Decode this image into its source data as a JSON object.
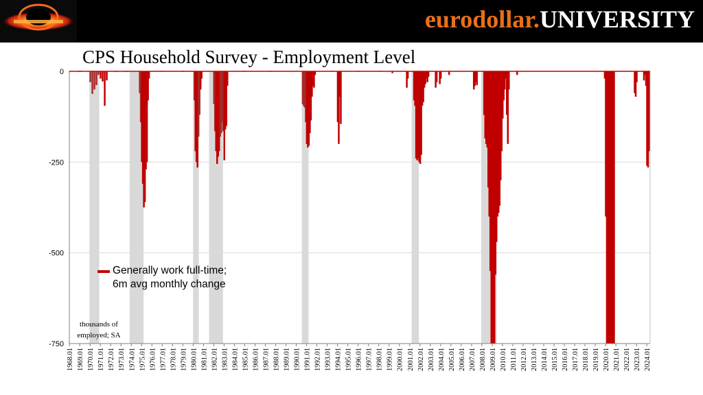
{
  "banner": {
    "brand_part1": "eurodollar.",
    "brand_part2": "UNIVERSITY",
    "logo_icon": "eurodollar-university-logo-icon"
  },
  "colors": {
    "banner_bg": "#000000",
    "brand_orange": "#e8701a",
    "bar_red": "#c00000",
    "bar_dark_red": "#a52a2a",
    "recession_gray": "#d9d9d9"
  },
  "chart_data": {
    "type": "bar",
    "title": "CPS Household Survey - Employment Level",
    "ylabel_note": [
      "thousands of",
      "employed; SA"
    ],
    "ylim": [
      -750,
      0
    ],
    "yticks": [
      0,
      -250,
      -500,
      -750
    ],
    "ytick_labels": [
      "0",
      "-250",
      "-500",
      "-750"
    ],
    "xlim": [
      "1968.01",
      "2024.04"
    ],
    "xtick_labels": [
      "1968.01",
      "1969.01",
      "1970.01",
      "1971.01",
      "1972.01",
      "1973.01",
      "1974.01",
      "1975.01",
      "1976.01",
      "1977.01",
      "1978.01",
      "1979.01",
      "1980.01",
      "1981.01",
      "1982.01",
      "1983.01",
      "1984.01",
      "1985.01",
      "1986.01",
      "1987.01",
      "1988.01",
      "1989.01",
      "1990.01",
      "1991.01",
      "1992.01",
      "1993.01",
      "1994.01",
      "1995.01",
      "1996.01",
      "1997.01",
      "1998.01",
      "1999.01",
      "2000.01",
      "2001.01",
      "2002.01",
      "2003.01",
      "2004.01",
      "2005.01",
      "2006.01",
      "2007.01",
      "2008.01",
      "2009.01",
      "2010.01",
      "2011.01",
      "2012.01",
      "2013.01",
      "2014.01",
      "2015.01",
      "2016.01",
      "2017.01",
      "2018.01",
      "2019.01",
      "2020.01",
      "2021.01",
      "2022.01",
      "2023.01",
      "2024.01"
    ],
    "grid": true,
    "legend": {
      "placement": "lower-left",
      "line1": "Generally work full-time;",
      "line2": "6m avg monthly change"
    },
    "recessions": [
      {
        "start": 1969.95,
        "end": 1970.9
      },
      {
        "start": 1973.85,
        "end": 1975.2
      },
      {
        "start": 1980.0,
        "end": 1980.55
      },
      {
        "start": 1981.55,
        "end": 1982.9
      },
      {
        "start": 1990.55,
        "end": 1991.2
      },
      {
        "start": 2001.2,
        "end": 2001.9
      },
      {
        "start": 2007.95,
        "end": 2009.45
      },
      {
        "start": 2020.1,
        "end": 2020.35
      }
    ],
    "series": [
      {
        "name": "Generally work full-time; 6m avg monthly change",
        "values": [
          [
            1968.0,
            -2
          ],
          [
            1969.0,
            -2
          ],
          [
            1970.0,
            -30
          ],
          [
            1970.2,
            -62
          ],
          [
            1970.4,
            -50
          ],
          [
            1970.6,
            -38
          ],
          [
            1970.8,
            -10
          ],
          [
            1971.0,
            -20
          ],
          [
            1971.2,
            -28
          ],
          [
            1971.4,
            -95
          ],
          [
            1971.6,
            -25
          ],
          [
            1972.5,
            -2
          ],
          [
            1973.5,
            -2
          ],
          [
            1974.8,
            -60
          ],
          [
            1974.9,
            -140
          ],
          [
            1975.0,
            -250
          ],
          [
            1975.1,
            -310
          ],
          [
            1975.2,
            -375
          ],
          [
            1975.3,
            -360
          ],
          [
            1975.4,
            -270
          ],
          [
            1975.5,
            -250
          ],
          [
            1975.6,
            -80
          ],
          [
            1975.7,
            -20
          ],
          [
            1977.0,
            -1
          ],
          [
            1979.0,
            -1
          ],
          [
            1980.1,
            -80
          ],
          [
            1980.2,
            -220
          ],
          [
            1980.3,
            -250
          ],
          [
            1980.4,
            -265
          ],
          [
            1980.5,
            -180
          ],
          [
            1980.6,
            -120
          ],
          [
            1980.7,
            -50
          ],
          [
            1980.8,
            -20
          ],
          [
            1982.0,
            -90
          ],
          [
            1982.1,
            -165
          ],
          [
            1982.2,
            -220
          ],
          [
            1982.3,
            -255
          ],
          [
            1982.4,
            -235
          ],
          [
            1982.5,
            -220
          ],
          [
            1982.6,
            -180
          ],
          [
            1982.7,
            -170
          ],
          [
            1982.8,
            -140
          ],
          [
            1982.9,
            -165
          ],
          [
            1983.0,
            -245
          ],
          [
            1983.1,
            -160
          ],
          [
            1983.2,
            -150
          ],
          [
            1983.3,
            -40
          ],
          [
            1985.0,
            -1
          ],
          [
            1987.5,
            -1
          ],
          [
            1990.6,
            -90
          ],
          [
            1990.7,
            -95
          ],
          [
            1990.8,
            -100
          ],
          [
            1990.9,
            -140
          ],
          [
            1991.0,
            -200
          ],
          [
            1991.1,
            -210
          ],
          [
            1991.2,
            -205
          ],
          [
            1991.3,
            -170
          ],
          [
            1991.4,
            -135
          ],
          [
            1991.5,
            -70
          ],
          [
            1991.6,
            -40
          ],
          [
            1991.7,
            -45
          ],
          [
            1991.8,
            -10
          ],
          [
            1993.5,
            -1
          ],
          [
            1994.0,
            -140
          ],
          [
            1994.1,
            -200
          ],
          [
            1994.2,
            -70
          ],
          [
            1994.3,
            -145
          ],
          [
            1996.0,
            -1
          ],
          [
            1998.0,
            -1
          ],
          [
            1999.3,
            -5
          ],
          [
            2000.7,
            -45
          ],
          [
            2000.8,
            -20
          ],
          [
            2001.4,
            -80
          ],
          [
            2001.5,
            -95
          ],
          [
            2001.6,
            -240
          ],
          [
            2001.7,
            -245
          ],
          [
            2001.8,
            -240
          ],
          [
            2001.9,
            -250
          ],
          [
            2002.0,
            -255
          ],
          [
            2002.1,
            -230
          ],
          [
            2002.2,
            -95
          ],
          [
            2002.3,
            -85
          ],
          [
            2002.4,
            -45
          ],
          [
            2002.5,
            -35
          ],
          [
            2002.6,
            -20
          ],
          [
            2002.7,
            -30
          ],
          [
            2002.8,
            -15
          ],
          [
            2003.5,
            -45
          ],
          [
            2003.6,
            -30
          ],
          [
            2003.9,
            -35
          ],
          [
            2004.0,
            -20
          ],
          [
            2004.8,
            -10
          ],
          [
            2007.2,
            -50
          ],
          [
            2007.3,
            -40
          ],
          [
            2007.4,
            -30
          ],
          [
            2007.5,
            -38
          ],
          [
            2008.2,
            -120
          ],
          [
            2008.3,
            -185
          ],
          [
            2008.4,
            -200
          ],
          [
            2008.5,
            -210
          ],
          [
            2008.6,
            -320
          ],
          [
            2008.7,
            -400
          ],
          [
            2008.8,
            -550
          ],
          [
            2008.9,
            -750
          ],
          [
            2009.0,
            -750
          ],
          [
            2009.1,
            -750
          ],
          [
            2009.2,
            -750
          ],
          [
            2009.3,
            -560
          ],
          [
            2009.4,
            -470
          ],
          [
            2009.5,
            -400
          ],
          [
            2009.6,
            -390
          ],
          [
            2009.7,
            -370
          ],
          [
            2009.8,
            -300
          ],
          [
            2009.9,
            -220
          ],
          [
            2010.0,
            -130
          ],
          [
            2010.1,
            -80
          ],
          [
            2010.2,
            -50
          ],
          [
            2010.3,
            -20
          ],
          [
            2010.4,
            -120
          ],
          [
            2010.5,
            -200
          ],
          [
            2010.6,
            -50
          ],
          [
            2011.4,
            -10
          ],
          [
            2019.9,
            -20
          ],
          [
            2020.0,
            -400
          ],
          [
            2020.1,
            -750
          ],
          [
            2020.2,
            -750
          ],
          [
            2020.3,
            -750
          ],
          [
            2020.4,
            -750
          ],
          [
            2020.5,
            -750
          ],
          [
            2020.6,
            -750
          ],
          [
            2020.7,
            -750
          ],
          [
            2020.8,
            -750
          ],
          [
            2022.8,
            -60
          ],
          [
            2022.9,
            -70
          ],
          [
            2023.0,
            -30
          ],
          [
            2023.7,
            -25
          ],
          [
            2023.8,
            -10
          ],
          [
            2023.9,
            -40
          ],
          [
            2024.0,
            -260
          ],
          [
            2024.1,
            -265
          ],
          [
            2024.2,
            -220
          ]
        ]
      }
    ]
  }
}
